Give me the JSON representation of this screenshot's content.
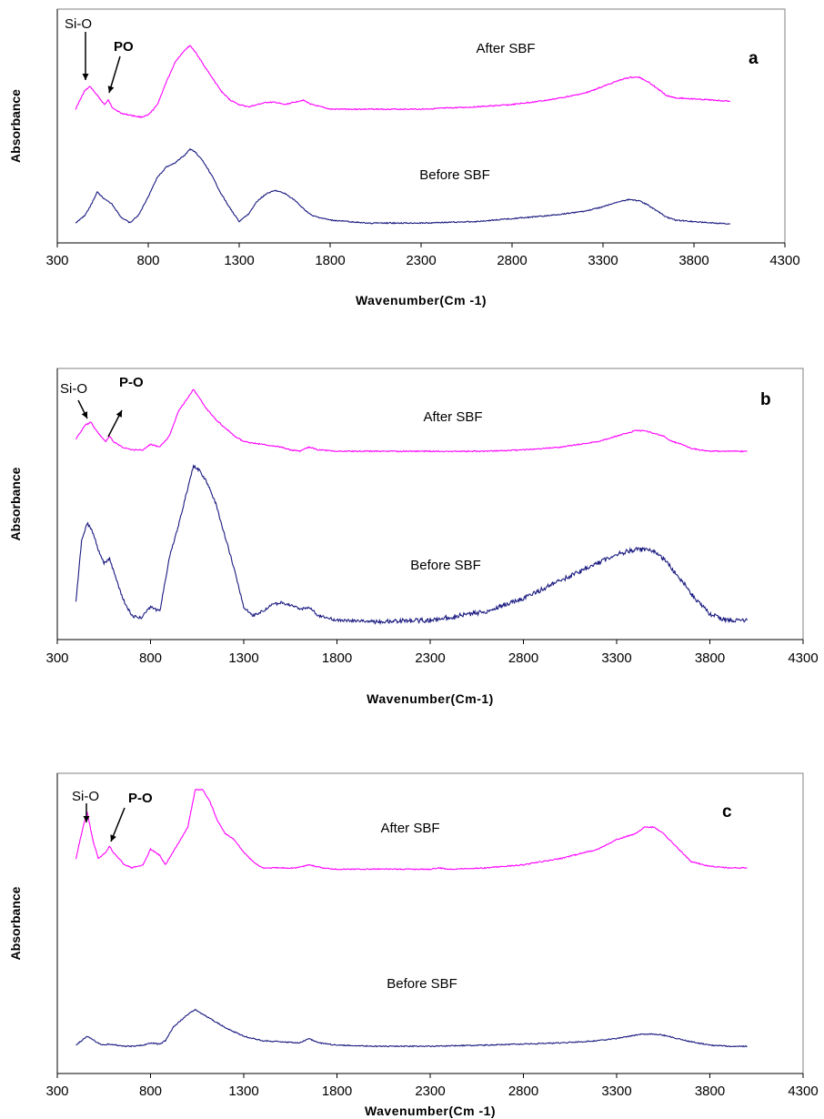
{
  "chart_data": [
    {
      "type": "line",
      "panel_label": "a",
      "xlabel": "Wavenumber(Cm -1)",
      "ylabel": "Absorbance",
      "xlim": [
        300,
        4300
      ],
      "xticks": [
        300,
        800,
        1300,
        1800,
        2300,
        2800,
        3300,
        3800,
        4300
      ],
      "grid": false,
      "series": [
        {
          "name": "After SBF",
          "color": "#ff00ff",
          "x": [
            400,
            450,
            480,
            520,
            560,
            580,
            600,
            650,
            700,
            760,
            800,
            850,
            900,
            950,
            1000,
            1030,
            1060,
            1100,
            1150,
            1200,
            1250,
            1300,
            1350,
            1400,
            1450,
            1500,
            1550,
            1600,
            1650,
            1700,
            1750,
            1800,
            2000,
            2300,
            2600,
            2800,
            3000,
            3200,
            3300,
            3400,
            3450,
            3500,
            3550,
            3600,
            3650,
            3700,
            3800,
            3900,
            4000
          ],
          "y": [
            0.72,
            0.8,
            0.82,
            0.78,
            0.74,
            0.76,
            0.73,
            0.7,
            0.69,
            0.68,
            0.69,
            0.74,
            0.84,
            0.93,
            0.98,
            1.0,
            0.97,
            0.92,
            0.86,
            0.8,
            0.76,
            0.74,
            0.73,
            0.74,
            0.75,
            0.75,
            0.74,
            0.75,
            0.76,
            0.74,
            0.73,
            0.72,
            0.72,
            0.72,
            0.73,
            0.74,
            0.76,
            0.79,
            0.82,
            0.85,
            0.86,
            0.86,
            0.84,
            0.81,
            0.78,
            0.77,
            0.765,
            0.76,
            0.755
          ]
        },
        {
          "name": "Before SBF",
          "color": "#1a1a80",
          "x": [
            400,
            450,
            480,
            520,
            560,
            600,
            650,
            700,
            750,
            800,
            850,
            900,
            950,
            1000,
            1030,
            1060,
            1100,
            1150,
            1200,
            1250,
            1300,
            1350,
            1400,
            1450,
            1500,
            1550,
            1600,
            1650,
            1700,
            1800,
            2000,
            2300,
            2600,
            2800,
            3000,
            3200,
            3300,
            3400,
            3450,
            3500,
            3550,
            3600,
            3650,
            3700,
            3800,
            3900,
            4000
          ],
          "y": [
            0.02,
            0.07,
            0.13,
            0.23,
            0.18,
            0.15,
            0.06,
            0.02,
            0.08,
            0.2,
            0.33,
            0.4,
            0.43,
            0.48,
            0.52,
            0.5,
            0.44,
            0.34,
            0.22,
            0.12,
            0.03,
            0.08,
            0.17,
            0.22,
            0.24,
            0.22,
            0.18,
            0.12,
            0.07,
            0.04,
            0.02,
            0.02,
            0.03,
            0.05,
            0.07,
            0.1,
            0.13,
            0.17,
            0.18,
            0.17,
            0.14,
            0.1,
            0.06,
            0.04,
            0.03,
            0.02,
            0.015
          ]
        }
      ],
      "annotations": [
        {
          "text": "Si-O",
          "bold": false
        },
        {
          "text": "PO",
          "bold": true
        }
      ]
    },
    {
      "type": "line",
      "panel_label": "b",
      "xlabel": "Wavenumber(Cm-1)",
      "ylabel": "Absorbance",
      "xlim": [
        300,
        4300
      ],
      "xticks": [
        300,
        800,
        1300,
        1800,
        2300,
        2800,
        3300,
        3800,
        4300
      ],
      "grid": false,
      "series": [
        {
          "name": "After SBF",
          "color": "#ff00ff",
          "x": [
            400,
            450,
            480,
            520,
            560,
            580,
            600,
            650,
            700,
            760,
            800,
            850,
            900,
            950,
            1000,
            1030,
            1060,
            1100,
            1150,
            1200,
            1250,
            1300,
            1400,
            1500,
            1550,
            1600,
            1650,
            1700,
            1800,
            2000,
            2300,
            2600,
            2800,
            3000,
            3200,
            3300,
            3400,
            3450,
            3500,
            3550,
            3600,
            3650,
            3700,
            3800,
            3900,
            4000
          ],
          "y": [
            0.79,
            0.84,
            0.85,
            0.81,
            0.78,
            0.8,
            0.78,
            0.76,
            0.75,
            0.75,
            0.77,
            0.76,
            0.8,
            0.89,
            0.94,
            0.97,
            0.94,
            0.9,
            0.86,
            0.83,
            0.8,
            0.78,
            0.77,
            0.76,
            0.75,
            0.745,
            0.76,
            0.75,
            0.745,
            0.745,
            0.745,
            0.745,
            0.75,
            0.76,
            0.78,
            0.8,
            0.82,
            0.82,
            0.81,
            0.8,
            0.78,
            0.77,
            0.755,
            0.745,
            0.745,
            0.745
          ]
        },
        {
          "name": "Before SBF",
          "color": "#1a1a80",
          "x": [
            400,
            430,
            460,
            490,
            520,
            550,
            580,
            610,
            650,
            700,
            750,
            800,
            850,
            900,
            950,
            1000,
            1030,
            1060,
            1100,
            1150,
            1200,
            1250,
            1300,
            1350,
            1400,
            1450,
            1500,
            1550,
            1600,
            1650,
            1700,
            1800,
            2000,
            2300,
            2600,
            2800,
            3000,
            3200,
            3300,
            3400,
            3450,
            3500,
            3550,
            3600,
            3650,
            3700,
            3750,
            3800,
            3850,
            3900,
            4000
          ],
          "y": [
            0.1,
            0.38,
            0.46,
            0.42,
            0.34,
            0.28,
            0.3,
            0.22,
            0.12,
            0.04,
            0.03,
            0.08,
            0.06,
            0.3,
            0.45,
            0.62,
            0.72,
            0.7,
            0.65,
            0.55,
            0.4,
            0.25,
            0.08,
            0.04,
            0.06,
            0.09,
            0.1,
            0.09,
            0.07,
            0.08,
            0.04,
            0.02,
            0.015,
            0.02,
            0.06,
            0.12,
            0.2,
            0.28,
            0.32,
            0.34,
            0.34,
            0.33,
            0.3,
            0.25,
            0.2,
            0.14,
            0.09,
            0.05,
            0.03,
            0.02,
            0.02
          ]
        }
      ],
      "annotations": [
        {
          "text": "Si-O",
          "bold": false
        },
        {
          "text": "P-O",
          "bold": true
        }
      ]
    },
    {
      "type": "line",
      "panel_label": "c",
      "xlabel": "Wavenumber(Cm -1)",
      "ylabel": "Absorbance",
      "xlim": [
        300,
        4300
      ],
      "xticks": [
        300,
        800,
        1300,
        1800,
        2300,
        2800,
        3300,
        3800,
        4300
      ],
      "grid": false,
      "series": [
        {
          "name": "After SBF",
          "color": "#ff00ff",
          "x": [
            400,
            430,
            460,
            490,
            520,
            560,
            580,
            600,
            630,
            660,
            700,
            760,
            800,
            850,
            880,
            920,
            960,
            1000,
            1040,
            1080,
            1120,
            1160,
            1200,
            1250,
            1300,
            1350,
            1400,
            1500,
            1580,
            1650,
            1720,
            1800,
            2000,
            2300,
            2350,
            2400,
            2600,
            2800,
            3000,
            3200,
            3300,
            3400,
            3450,
            3500,
            3550,
            3600,
            3650,
            3700,
            3800,
            3900,
            4000
          ],
          "y": [
            0.78,
            0.86,
            0.93,
            0.84,
            0.78,
            0.8,
            0.82,
            0.8,
            0.78,
            0.76,
            0.75,
            0.76,
            0.81,
            0.79,
            0.76,
            0.8,
            0.84,
            0.88,
            1.0,
            1.0,
            0.96,
            0.9,
            0.86,
            0.84,
            0.8,
            0.77,
            0.75,
            0.75,
            0.75,
            0.76,
            0.75,
            0.745,
            0.745,
            0.745,
            0.75,
            0.745,
            0.75,
            0.76,
            0.78,
            0.81,
            0.84,
            0.86,
            0.88,
            0.88,
            0.86,
            0.83,
            0.8,
            0.77,
            0.755,
            0.75,
            0.75
          ]
        },
        {
          "name": "Before SBF",
          "color": "#1a1a80",
          "x": [
            400,
            430,
            460,
            500,
            540,
            580,
            620,
            660,
            700,
            760,
            800,
            850,
            880,
            920,
            960,
            1000,
            1040,
            1080,
            1120,
            1160,
            1200,
            1250,
            1300,
            1350,
            1400,
            1500,
            1600,
            1650,
            1700,
            1800,
            2000,
            2300,
            2600,
            2800,
            3000,
            3200,
            3300,
            3400,
            3450,
            3500,
            3550,
            3600,
            3650,
            3700,
            3800,
            3900,
            4000
          ],
          "y": [
            0.02,
            0.04,
            0.06,
            0.04,
            0.02,
            0.025,
            0.02,
            0.015,
            0.015,
            0.02,
            0.03,
            0.025,
            0.04,
            0.1,
            0.13,
            0.16,
            0.18,
            0.16,
            0.14,
            0.12,
            0.1,
            0.08,
            0.06,
            0.05,
            0.04,
            0.035,
            0.03,
            0.05,
            0.03,
            0.02,
            0.015,
            0.015,
            0.02,
            0.025,
            0.03,
            0.04,
            0.05,
            0.065,
            0.07,
            0.07,
            0.065,
            0.055,
            0.045,
            0.035,
            0.02,
            0.015,
            0.015
          ]
        }
      ],
      "annotations": [
        {
          "text": "Si-O",
          "bold": false
        },
        {
          "text": "P-O",
          "bold": true
        }
      ]
    }
  ]
}
